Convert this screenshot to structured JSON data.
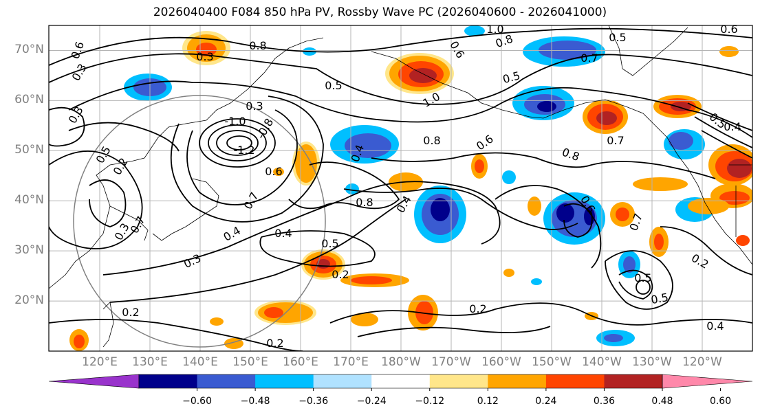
{
  "title": "2026040400 F084 850 hPa PV, Rossby Wave PC (2026040600 - 2026041000)",
  "map": {
    "lat_labels": [
      "70°N",
      "60°N",
      "50°N",
      "40°N",
      "30°N",
      "20°N"
    ],
    "lat_values": [
      70,
      60,
      50,
      40,
      30,
      20
    ],
    "lon_labels": [
      "120°E",
      "130°E",
      "140°E",
      "150°E",
      "160°E",
      "170°E",
      "180°W",
      "170°W",
      "160°W",
      "150°W",
      "140°W",
      "130°W",
      "120°W"
    ],
    "lat_range": [
      10,
      75
    ],
    "contour_labels": [
      "1.0",
      "0.6",
      "0.8",
      "0.3",
      "0.8",
      "0.6",
      "0.5",
      "0.7",
      "0.5",
      "1.0",
      "0.6",
      "0.4",
      "0.5",
      "0.7",
      "0.8",
      "0.4",
      "0.3",
      "0.5",
      "0.2",
      "0.3",
      "0.6",
      "0.4",
      "0.3",
      "0.7",
      "0.5",
      "0.2",
      "0.2",
      "0.2",
      "0.4",
      "0.5",
      "-1.0",
      "-1.2",
      "-0.8",
      "0.3",
      "0.5",
      "0.8",
      "0.6",
      "0.7",
      "0.8",
      "0.4",
      "0.6",
      "0.4",
      "0.7",
      "0.3",
      "0.2",
      "0.5",
      "0.2"
    ],
    "colors": {
      "grid": "#b4b4b4",
      "contour": "#000000",
      "circle": "#808080"
    }
  },
  "colorbar": {
    "ticks": [
      "−0.60",
      "−0.48",
      "−0.36",
      "−0.24",
      "−0.12",
      "0.12",
      "0.24",
      "0.36",
      "0.48",
      "0.60"
    ],
    "colors": [
      "#9933cc",
      "#00008b",
      "#3a5bd1",
      "#00bfff",
      "#b0e2ff",
      "#ffffff",
      "#ffe68a",
      "#ffa500",
      "#ff4500",
      "#b22222",
      "#ff88aa"
    ]
  }
}
